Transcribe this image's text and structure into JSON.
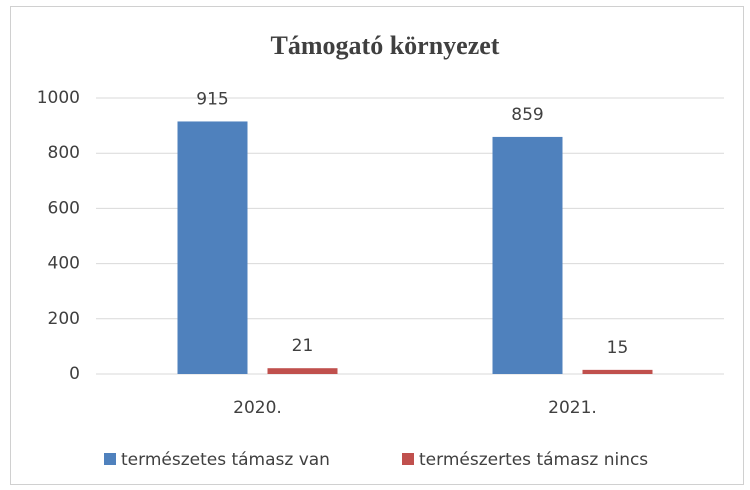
{
  "chart_data": {
    "type": "bar",
    "title": "Támogató környezet",
    "categories": [
      "2020.",
      "2021."
    ],
    "series": [
      {
        "name": "természetes támasz van",
        "color": "#4f81bd",
        "values": [
          915,
          859
        ]
      },
      {
        "name": "természertes támasz nincs",
        "color": "#c0504d",
        "values": [
          21,
          15
        ]
      }
    ],
    "ylim": [
      0,
      1000
    ],
    "yticks": [
      0,
      200,
      400,
      600,
      800,
      1000
    ],
    "grid": true,
    "legend": "bottom"
  }
}
